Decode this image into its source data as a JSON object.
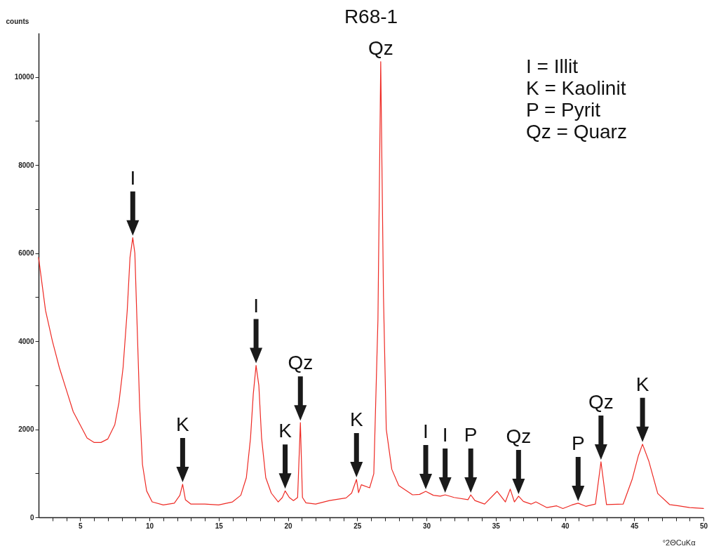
{
  "chart_data": {
    "type": "line",
    "title": "R68-1",
    "xlabel": "°2ΘCuKα",
    "ylabel": "counts",
    "color": "#ee2a24",
    "x": [
      2,
      2.5,
      3,
      3.5,
      4,
      4.5,
      5,
      5.5,
      6,
      6.5,
      7,
      7.5,
      7.8,
      8.1,
      8.4,
      8.6,
      8.8,
      8.95,
      9.1,
      9.3,
      9.5,
      9.8,
      10.2,
      11,
      11.8,
      12.2,
      12.4,
      12.6,
      13,
      14,
      15,
      16,
      16.6,
      17,
      17.3,
      17.5,
      17.7,
      17.9,
      18.1,
      18.4,
      18.8,
      19.3,
      19.6,
      19.8,
      20.1,
      20.4,
      20.7,
      20.9,
      21.05,
      21.3,
      22,
      23,
      24.2,
      24.6,
      24.95,
      25.1,
      25.3,
      25.9,
      26.2,
      26.5,
      26.7,
      26.9,
      27.1,
      27.5,
      28,
      29,
      29.5,
      29.95,
      30.5,
      31,
      31.35,
      32,
      33,
      33.2,
      33.5,
      34.2,
      35.1,
      35.7,
      36.05,
      36.35,
      36.65,
      37,
      37.55,
      37.9,
      38.7,
      39.4,
      39.85,
      40.5,
      40.95,
      41.5,
      42.2,
      42.6,
      43,
      44.2,
      44.85,
      45.3,
      45.6,
      46.05,
      46.7,
      47.55,
      48.2,
      49,
      50
    ],
    "values": [
      5900,
      4700,
      4000,
      3400,
      2900,
      2400,
      2100,
      1800,
      1700,
      1700,
      1780,
      2100,
      2600,
      3400,
      4700,
      5900,
      6350,
      6000,
      4500,
      2500,
      1200,
      600,
      350,
      280,
      320,
      500,
      750,
      400,
      300,
      300,
      280,
      350,
      500,
      900,
      1800,
      2800,
      3450,
      3000,
      1800,
      900,
      550,
      350,
      450,
      600,
      450,
      380,
      450,
      2150,
      450,
      330,
      300,
      380,
      440,
      550,
      860,
      560,
      740,
      670,
      990,
      4500,
      10350,
      5000,
      2000,
      1090,
      720,
      510,
      520,
      590,
      500,
      480,
      510,
      450,
      400,
      510,
      380,
      300,
      590,
      350,
      640,
      350,
      480,
      360,
      300,
      350,
      220,
      260,
      200,
      280,
      320,
      250,
      300,
      1260,
      290,
      300,
      860,
      1400,
      1660,
      1280,
      540,
      290,
      260,
      220,
      200
    ],
    "xlim": [
      2,
      50
    ],
    "ylim": [
      0,
      11000
    ],
    "xticks": [
      {
        "value": 3,
        "label": null
      },
      {
        "value": 4,
        "label": null
      },
      5,
      {
        "value": 6,
        "label": null
      },
      {
        "value": 7,
        "label": null
      },
      {
        "value": 8,
        "label": null
      },
      {
        "value": 9,
        "label": null
      },
      10,
      {
        "value": 11,
        "label": null
      },
      {
        "value": 12,
        "label": null
      },
      {
        "value": 13,
        "label": null
      },
      {
        "value": 14,
        "label": null
      },
      15,
      {
        "value": 16,
        "label": null
      },
      {
        "value": 17,
        "label": null
      },
      {
        "value": 18,
        "label": null
      },
      {
        "value": 19,
        "label": null
      },
      20,
      {
        "value": 21,
        "label": null
      },
      {
        "value": 22,
        "label": null
      },
      {
        "value": 23,
        "label": null
      },
      {
        "value": 24,
        "label": null
      },
      25,
      {
        "value": 26,
        "label": null
      },
      {
        "value": 27,
        "label": null
      },
      {
        "value": 28,
        "label": null
      },
      {
        "value": 29,
        "label": null
      },
      30,
      {
        "value": 31,
        "label": null
      },
      {
        "value": 32,
        "label": null
      },
      {
        "value": 33,
        "label": null
      },
      {
        "value": 34,
        "label": null
      },
      35,
      {
        "value": 36,
        "label": null
      },
      {
        "value": 37,
        "label": null
      },
      {
        "value": 38,
        "label": null
      },
      {
        "value": 39,
        "label": null
      },
      40,
      {
        "value": 41,
        "label": null
      },
      {
        "value": 42,
        "label": null
      },
      {
        "value": 43,
        "label": null
      },
      {
        "value": 44,
        "label": null
      },
      45,
      {
        "value": 46,
        "label": null
      },
      {
        "value": 47,
        "label": null
      },
      {
        "value": 48,
        "label": null
      },
      {
        "value": 49,
        "label": null
      },
      50
    ],
    "yticks": [
      0,
      {
        "value": 1000,
        "label": null
      },
      2000,
      {
        "value": 3000,
        "label": null
      },
      4000,
      {
        "value": 5000,
        "label": null
      },
      6000,
      {
        "value": 7000,
        "label": null
      },
      8000,
      {
        "value": 9000,
        "label": null
      },
      10000
    ],
    "annotations": [
      "I = Illit",
      "K = Kaolinit",
      "P = Pyrit",
      "Qz = Quarz",
      {
        "text": "I",
        "x": 8.8,
        "y": 6350
      },
      {
        "text": "K",
        "x": 12.4,
        "y": 750
      },
      {
        "text": "I",
        "x": 17.7,
        "y": 3450
      },
      {
        "text": "K",
        "x": 19.8,
        "y": 600
      },
      {
        "text": "Qz",
        "x": 20.9,
        "y": 2150
      },
      {
        "text": "K",
        "x": 24.95,
        "y": 860
      },
      {
        "text": "Qz",
        "x": 26.7,
        "y": 10350
      },
      {
        "text": "I",
        "x": 29.95,
        "y": 590
      },
      {
        "text": "I",
        "x": 31.35,
        "y": 510
      },
      {
        "text": "P",
        "x": 33.2,
        "y": 510
      },
      {
        "text": "Qz",
        "x": 36.65,
        "y": 480
      },
      {
        "text": "P",
        "x": 40.95,
        "y": 320
      },
      {
        "text": "Qz",
        "x": 42.6,
        "y": 1260
      },
      {
        "text": "K",
        "x": 45.6,
        "y": 1660
      }
    ]
  }
}
